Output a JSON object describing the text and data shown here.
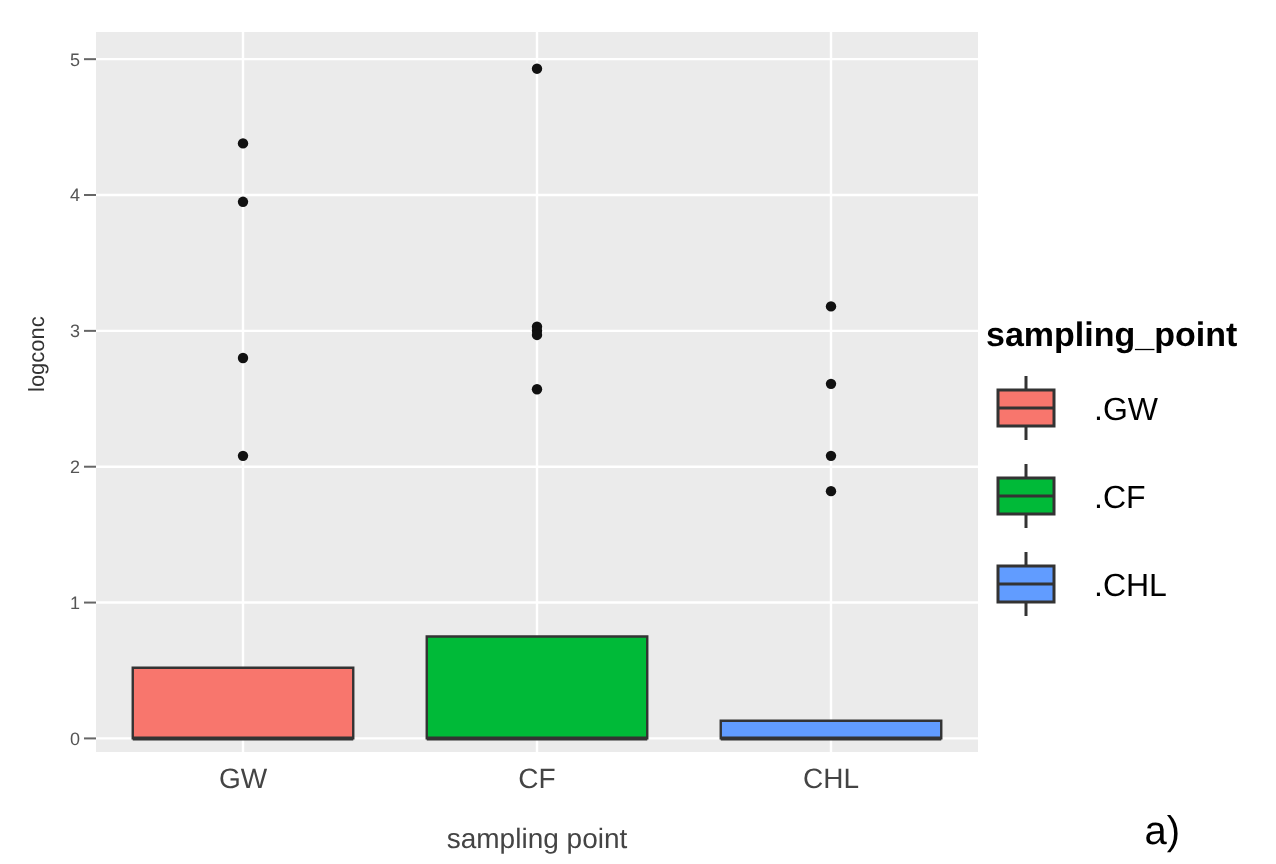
{
  "chart_data": {
    "type": "box",
    "xlabel": "sampling point",
    "ylabel": "logconc",
    "legend_title": "sampling_point",
    "categories": [
      "GW",
      "CF",
      "CHL"
    ],
    "ylim": [
      -0.1,
      5.2
    ],
    "yticks": [
      0,
      1,
      2,
      3,
      4,
      5
    ],
    "grid": true,
    "legend": "right",
    "marker": "circle",
    "annotations": [
      "a)"
    ],
    "series": [
      {
        "name": ".GW",
        "color": "#f8766d",
        "boxes": [
          {
            "low": 0,
            "q1": 0,
            "median": 0,
            "q3": 0.52,
            "high": 0.52,
            "outliers": [
              4.38,
              3.95,
              2.8,
              2.08
            ]
          },
          null,
          null
        ]
      },
      {
        "name": ".CF",
        "color": "#00ba38",
        "boxes": [
          null,
          {
            "low": 0,
            "q1": 0,
            "median": 0,
            "q3": 0.75,
            "high": 0.75,
            "outliers": [
              4.93,
              3.03,
              3.0,
              2.97,
              2.57
            ]
          },
          null
        ]
      },
      {
        "name": ".CHL",
        "color": "#619cff",
        "boxes": [
          null,
          null,
          {
            "low": 0,
            "q1": 0,
            "median": 0,
            "q3": 0.13,
            "high": 0.13,
            "outliers": [
              3.18,
              2.61,
              2.08,
              1.82
            ]
          }
        ]
      }
    ]
  }
}
